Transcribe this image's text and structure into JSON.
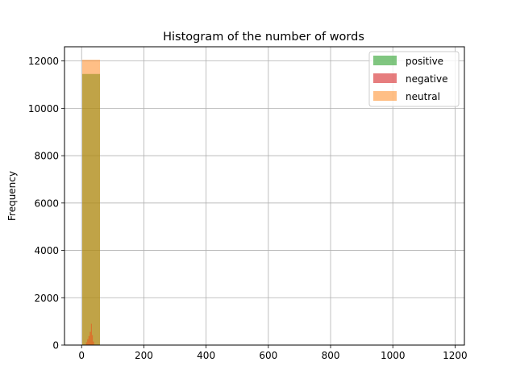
{
  "chart_data": {
    "type": "bar",
    "title": "Histogram of the number of words",
    "xlabel": "",
    "ylabel": "Frequency",
    "xlim": [
      -55,
      1230
    ],
    "ylim": [
      0,
      12600
    ],
    "xticks": [
      0,
      200,
      400,
      600,
      800,
      1000,
      1200
    ],
    "yticks": [
      0,
      2000,
      4000,
      6000,
      8000,
      10000,
      12000
    ],
    "grid": true,
    "legend_position": "top-right",
    "series": [
      {
        "name": "positive",
        "color": "#2ca02c",
        "opacity": 0.6,
        "bins": [
          {
            "x0": 2,
            "x1": 59,
            "count": 11450
          }
        ]
      },
      {
        "name": "negative",
        "color": "#d62728",
        "opacity": 0.6,
        "bins": [
          {
            "x0": 14,
            "x1": 18,
            "count": 120
          },
          {
            "x0": 18,
            "x1": 22,
            "count": 250
          },
          {
            "x0": 22,
            "x1": 26,
            "count": 380
          },
          {
            "x0": 26,
            "x1": 30,
            "count": 560
          },
          {
            "x0": 30,
            "x1": 33,
            "count": 900
          },
          {
            "x0": 33,
            "x1": 36,
            "count": 420
          },
          {
            "x0": 36,
            "x1": 40,
            "count": 150
          }
        ]
      },
      {
        "name": "neutral",
        "color": "#ff7f0e",
        "opacity": 0.5,
        "bins": [
          {
            "x0": 2,
            "x1": 59,
            "count": 12050
          }
        ]
      }
    ]
  }
}
